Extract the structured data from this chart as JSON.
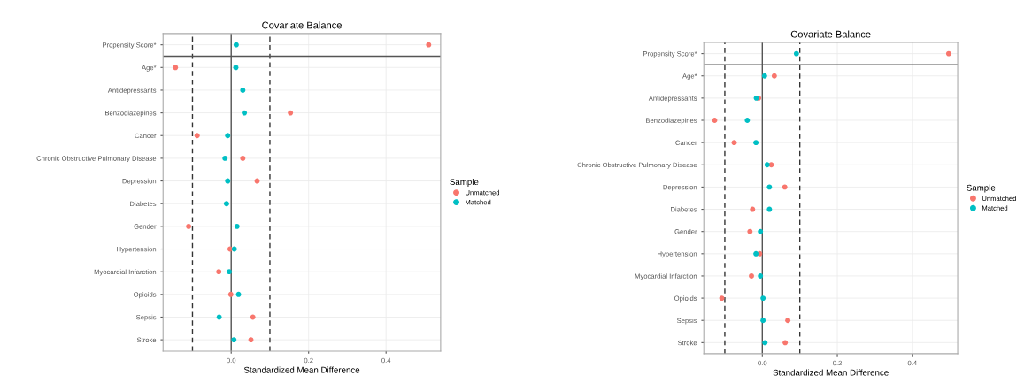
{
  "chart_data": [
    {
      "type": "scatter",
      "orientation": "horizontal",
      "title": "Covariate Balance",
      "xlabel": "Standardized Mean Difference",
      "legend_title": "Sample",
      "legend": "right",
      "grid": true,
      "marker": "circle",
      "categories": [
        "Propensity Score*",
        "Age*",
        "Antidepressants",
        "Benzodiazepines",
        "Cancer",
        "Chronic Obstructive Pulmonary Disease",
        "Depression",
        "Diabetes",
        "Gender",
        "Hypertension",
        "Myocardial Infarction",
        "Opioids",
        "Sepsis",
        "Stroke"
      ],
      "xlim": [
        -0.176,
        0.541
      ],
      "xticks": [
        {
          "value": 0,
          "label": "0.0"
        },
        {
          "value": 0.2,
          "label": "0.2"
        },
        {
          "value": 0.4,
          "label": "0.4"
        }
      ],
      "series": [
        {
          "name": "Unmatched",
          "color": "#f8766d",
          "values": [
            0.51,
            -0.144,
            null,
            0.153,
            -0.088,
            0.03,
            0.067,
            null,
            -0.11,
            -0.003,
            -0.032,
            -0.001,
            0.056,
            0.051
          ]
        },
        {
          "name": "Matched",
          "color": "#00bfc4",
          "values": [
            0.013,
            0.012,
            0.03,
            0.034,
            -0.009,
            -0.016,
            -0.009,
            -0.012,
            0.015,
            0.008,
            -0.005,
            0.019,
            -0.031,
            0.007
          ]
        }
      ],
      "ref_lines": [
        {
          "axis": "x",
          "value": -0.1,
          "line_style": "dashed",
          "color": "#333333"
        },
        {
          "axis": "x",
          "value": 0.1,
          "line_style": "dashed",
          "color": "#333333"
        },
        {
          "axis": "x",
          "value": 0,
          "line_style": "solid",
          "color": "#555555"
        }
      ]
    },
    {
      "type": "scatter",
      "orientation": "horizontal",
      "title": "Covariate Balance",
      "xlabel": "Standardized Mean Difference",
      "legend_title": "Sample",
      "legend": "right",
      "grid": true,
      "marker": "circle",
      "categories": [
        "Propensity Score*",
        "Age*",
        "Antidepressants",
        "Benzodiazepines",
        "Cancer",
        "Chronic Obstructive Pulmonary Disease",
        "Depression",
        "Diabetes",
        "Gender",
        "Hypertension",
        "Myocardial Infarction",
        "Opioids",
        "Sepsis",
        "Stroke"
      ],
      "xlim": [
        -0.156,
        0.521
      ],
      "xticks": [
        {
          "value": 0,
          "label": "0.0"
        },
        {
          "value": 0.2,
          "label": "0.2"
        },
        {
          "value": 0.4,
          "label": "0.4"
        }
      ],
      "series": [
        {
          "name": "Unmatched",
          "color": "#f8766d",
          "values": [
            0.497,
            0.032,
            -0.01,
            -0.127,
            -0.075,
            0.024,
            0.06,
            -0.026,
            -0.033,
            -0.007,
            -0.029,
            -0.108,
            0.068,
            0.061
          ]
        },
        {
          "name": "Matched",
          "color": "#00bfc4",
          "values": [
            0.091,
            0.006,
            -0.016,
            -0.04,
            -0.017,
            0.013,
            0.019,
            0.019,
            -0.005,
            -0.017,
            -0.005,
            0.002,
            0.002,
            0.007
          ]
        }
      ],
      "ref_lines": [
        {
          "axis": "x",
          "value": -0.1,
          "line_style": "dashed",
          "color": "#333333"
        },
        {
          "axis": "x",
          "value": 0.1,
          "line_style": "dashed",
          "color": "#333333"
        },
        {
          "axis": "x",
          "value": 0,
          "line_style": "solid",
          "color": "#555555"
        }
      ]
    }
  ]
}
